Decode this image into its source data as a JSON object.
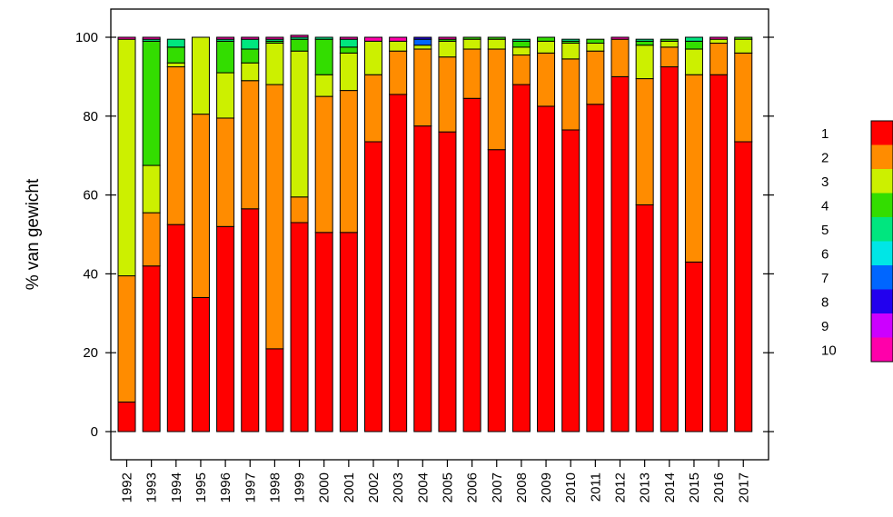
{
  "chart_data": {
    "type": "bar",
    "stacked": true,
    "title": "",
    "xlabel": "",
    "ylabel": "% van gewicht",
    "ylim": [
      0,
      100
    ],
    "yticks": [
      0,
      20,
      40,
      60,
      80,
      100
    ],
    "grid": false,
    "legend_placement": "right",
    "categories": [
      "1992",
      "1993",
      "1994",
      "1995",
      "1996",
      "1997",
      "1998",
      "1999",
      "2000",
      "2001",
      "2002",
      "2003",
      "2004",
      "2005",
      "2006",
      "2007",
      "2008",
      "2009",
      "2010",
      "2011",
      "2012",
      "2013",
      "2014",
      "2015",
      "2016",
      "2017"
    ],
    "series": [
      {
        "name": "1",
        "color": "#FF0000",
        "values": [
          7.5,
          42,
          52.5,
          34,
          52,
          56.5,
          21,
          53,
          50.5,
          50.5,
          73.5,
          85.5,
          77.5,
          76,
          84.5,
          71.5,
          88,
          82.5,
          76.5,
          83,
          90,
          57.5,
          92.5,
          43,
          90.5,
          73.5
        ]
      },
      {
        "name": "2",
        "color": "#FF8C00",
        "values": [
          32,
          13.5,
          40,
          46.5,
          27.5,
          32.5,
          67,
          6.5,
          34.5,
          36,
          17,
          11,
          19.5,
          19,
          12.5,
          25.5,
          7.5,
          13.5,
          18,
          13.5,
          9.5,
          32,
          5,
          47.5,
          8,
          22.5
        ]
      },
      {
        "name": "3",
        "color": "#CCF000",
        "values": [
          60,
          12,
          1,
          19.5,
          11.5,
          4.5,
          10.5,
          37,
          5.5,
          9.5,
          8.5,
          2.5,
          1,
          4,
          2.5,
          2.5,
          2,
          3,
          4,
          2,
          0,
          8.5,
          1.5,
          6.5,
          1,
          3.5
        ]
      },
      {
        "name": "4",
        "color": "#33DD00",
        "values": [
          0,
          31.5,
          4,
          0,
          8,
          3.5,
          0.5,
          3,
          9,
          1.5,
          0,
          0,
          0,
          0.5,
          0.5,
          0.5,
          1.5,
          1,
          0.5,
          1,
          0,
          1,
          0.5,
          2,
          0,
          0.5
        ]
      },
      {
        "name": "5",
        "color": "#00E67F",
        "values": [
          0,
          0.5,
          2,
          0,
          0.5,
          2.5,
          0.5,
          0.5,
          0.5,
          2,
          0,
          0,
          0,
          0,
          0,
          0,
          0.5,
          0,
          0.5,
          0,
          0,
          0.5,
          0,
          1,
          0,
          0
        ]
      },
      {
        "name": "6",
        "color": "#00E6E6",
        "values": [
          0,
          0,
          0,
          0,
          0,
          0,
          0,
          0,
          0,
          0,
          0,
          0,
          0,
          0,
          0,
          0,
          0,
          0,
          0,
          0,
          0,
          0,
          0,
          0,
          0,
          0
        ]
      },
      {
        "name": "7",
        "color": "#0066FF",
        "values": [
          0,
          0,
          0,
          0,
          0,
          0,
          0,
          0,
          0,
          0,
          0,
          0,
          1.5,
          0,
          0,
          0,
          0,
          0,
          0,
          0,
          0,
          0,
          0,
          0,
          0,
          0
        ]
      },
      {
        "name": "8",
        "color": "#2200EE",
        "values": [
          0,
          0,
          0,
          0,
          0,
          0,
          0,
          0,
          0,
          0,
          0,
          0,
          0.5,
          0,
          0,
          0,
          0,
          0,
          0,
          0,
          0,
          0,
          0,
          0,
          0,
          0
        ]
      },
      {
        "name": "9",
        "color": "#CC00FF",
        "values": [
          0,
          0,
          0,
          0,
          0,
          0,
          0,
          0,
          0,
          0,
          0,
          0,
          0,
          0,
          0,
          0,
          0,
          0,
          0,
          0,
          0,
          0,
          0,
          0,
          0,
          0
        ]
      },
      {
        "name": "10",
        "color": "#FF00AA",
        "values": [
          0.5,
          0.5,
          0,
          0,
          0.5,
          0.5,
          0.5,
          0.5,
          0,
          0.5,
          1,
          1,
          0,
          0.5,
          0,
          0,
          0,
          0,
          0,
          0,
          0.5,
          0,
          0,
          0,
          0.5,
          0
        ]
      }
    ]
  }
}
